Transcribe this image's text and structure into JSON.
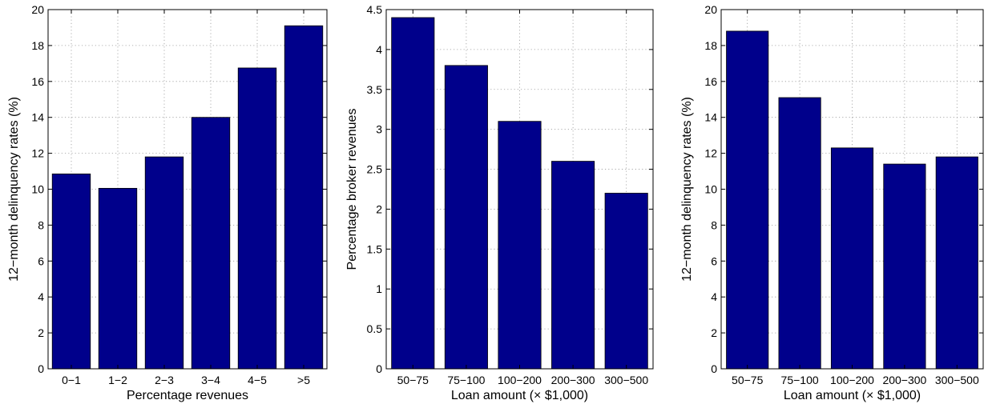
{
  "colors": {
    "bar": "#00008B",
    "axis": "#000000",
    "grid": "#9a9a9a"
  },
  "chart_data": [
    {
      "type": "bar",
      "categories": [
        "0−1",
        "1−2",
        "2−3",
        "3−4",
        "4−5",
        ">5"
      ],
      "values": [
        10.85,
        10.05,
        11.8,
        14.0,
        16.75,
        19.1
      ],
      "xlabel": "Percentage revenues",
      "ylabel": "12−month delinquency rates (%)",
      "ylim": [
        0,
        20
      ],
      "yticks": [
        0,
        2,
        4,
        6,
        8,
        10,
        12,
        14,
        16,
        18,
        20
      ],
      "ytick_labels": [
        "0",
        "2",
        "4",
        "6",
        "8",
        "10",
        "12",
        "14",
        "16",
        "18",
        "20"
      ],
      "grid": true
    },
    {
      "type": "bar",
      "categories": [
        "50−75",
        "75−100",
        "100−200",
        "200−300",
        "300−500"
      ],
      "values": [
        4.4,
        3.8,
        3.1,
        2.6,
        2.2
      ],
      "xlabel": "Loan amount (× $1,000)",
      "ylabel": "Percentage broker revenues",
      "ylim": [
        0,
        4.5
      ],
      "yticks": [
        0,
        0.5,
        1,
        1.5,
        2,
        2.5,
        3,
        3.5,
        4,
        4.5
      ],
      "ytick_labels": [
        "0",
        "0.5",
        "1",
        "1.5",
        "2",
        "2.5",
        "3",
        "3.5",
        "4",
        "4.5"
      ],
      "grid": true
    },
    {
      "type": "bar",
      "categories": [
        "50−75",
        "75−100",
        "100−200",
        "200−300",
        "300−500"
      ],
      "values": [
        18.8,
        15.1,
        12.3,
        11.4,
        11.8
      ],
      "xlabel": "Loan amount (× $1,000)",
      "ylabel": "12−month delinquency rates (%)",
      "ylim": [
        0,
        20
      ],
      "yticks": [
        0,
        2,
        4,
        6,
        8,
        10,
        12,
        14,
        16,
        18,
        20
      ],
      "ytick_labels": [
        "0",
        "2",
        "4",
        "6",
        "8",
        "10",
        "12",
        "14",
        "16",
        "18",
        "20"
      ],
      "grid": true
    }
  ]
}
